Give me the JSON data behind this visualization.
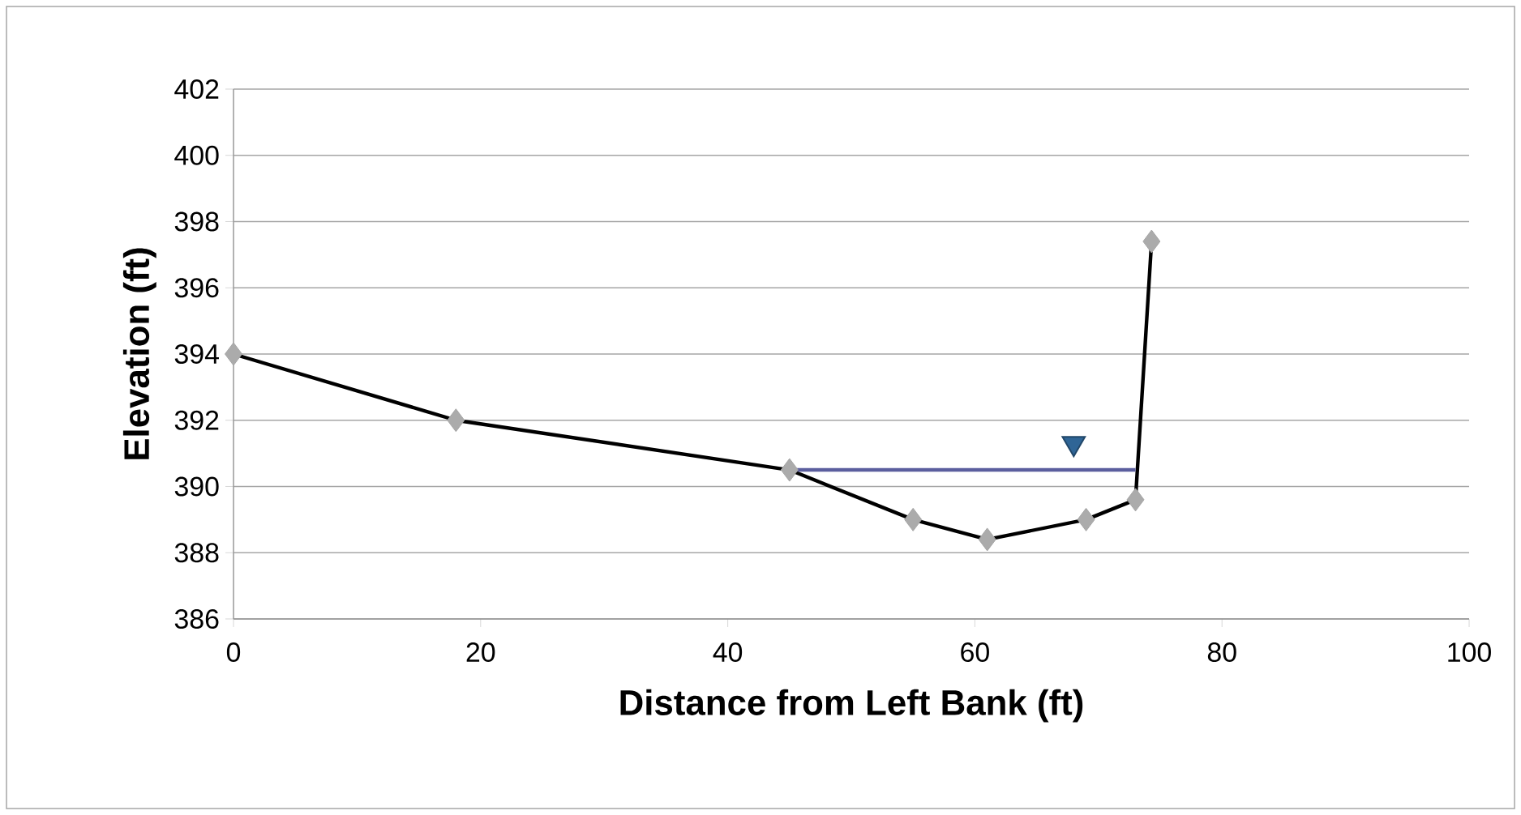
{
  "chart_data": {
    "type": "line",
    "xlabel": "Distance from Left Bank (ft)",
    "ylabel": "Elevation (ft)",
    "xlim": [
      0,
      100
    ],
    "xticks": [
      0,
      20,
      40,
      60,
      80,
      100
    ],
    "ylim": [
      386,
      402
    ],
    "yticks": [
      386,
      388,
      390,
      392,
      394,
      396,
      398,
      400,
      402
    ],
    "grid": "y",
    "series": [
      {
        "color": "#000000",
        "marker": "diamond",
        "x": [
          0,
          18,
          45,
          55,
          61,
          69,
          73,
          74.3
        ],
        "values": [
          394,
          392,
          390.5,
          389,
          388.4,
          389,
          389.6,
          397.4
        ]
      },
      {
        "type": "line",
        "color": "#5b5e9e",
        "marker": "none",
        "x": [
          45,
          73
        ],
        "values": [
          390.5,
          390.5
        ]
      },
      {
        "type": "scatter",
        "color": "#2f6596",
        "marker": "triangle",
        "x": [
          68
        ],
        "values": [
          391.3
        ]
      }
    ]
  }
}
